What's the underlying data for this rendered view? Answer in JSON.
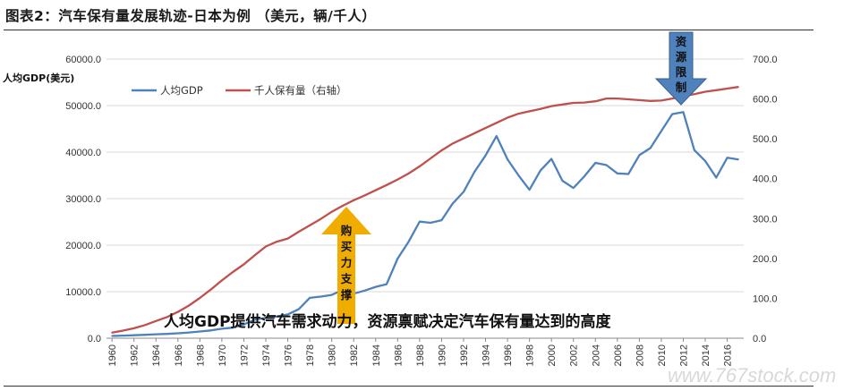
{
  "title": "图表2：汽车保有量发展轨迹-日本为例 （美元，辆/千人）",
  "watermark": "www.767stock.com",
  "chart_data": {
    "type": "line",
    "subtitle": "人均GDP提供汽车需求动力，资源禀赋决定汽车保有量达到的高度",
    "ylabel_left": "人均GDP(美元)",
    "ylim_left": [
      0,
      60000
    ],
    "ylim_right": [
      0,
      700
    ],
    "yticks_left": [
      "0.0",
      "10000.0",
      "20000.0",
      "30000.0",
      "40000.0",
      "50000.0",
      "60000.0"
    ],
    "yticks_right": [
      "0.0",
      "100.0",
      "200.0",
      "300.0",
      "400.0",
      "500.0",
      "600.0",
      "700.0"
    ],
    "x": [
      1960,
      1961,
      1962,
      1963,
      1964,
      1965,
      1966,
      1967,
      1968,
      1969,
      1970,
      1971,
      1972,
      1973,
      1974,
      1975,
      1976,
      1977,
      1978,
      1979,
      1980,
      1981,
      1982,
      1983,
      1984,
      1985,
      1986,
      1987,
      1988,
      1989,
      1990,
      1991,
      1992,
      1993,
      1994,
      1995,
      1996,
      1997,
      1998,
      1999,
      2000,
      2001,
      2002,
      2003,
      2004,
      2005,
      2006,
      2007,
      2008,
      2009,
      2010,
      2011,
      2012,
      2013,
      2014,
      2015,
      2016,
      2017
    ],
    "xticks": [
      "1960",
      "1962",
      "1964",
      "1966",
      "1968",
      "1970",
      "1972",
      "1974",
      "1976",
      "1978",
      "1980",
      "1982",
      "1984",
      "1986",
      "1988",
      "1990",
      "1992",
      "1994",
      "1996",
      "1998",
      "2000",
      "2002",
      "2004",
      "2006",
      "2008",
      "2010",
      "2012",
      "2014",
      "2016"
    ],
    "legend_position": "top-left",
    "series": [
      {
        "name": "人均GDP",
        "axis": "left",
        "color": "#4f81bd",
        "values": [
          480,
          560,
          640,
          730,
          840,
          920,
          1060,
          1230,
          1450,
          1670,
          2040,
          2270,
          2970,
          3990,
          4360,
          4660,
          5110,
          6230,
          8670,
          8950,
          9310,
          10360,
          9580,
          10230,
          11040,
          11610,
          17110,
          20750,
          25050,
          24810,
          25360,
          28920,
          31460,
          35770,
          39270,
          43440,
          38440,
          35020,
          31900,
          36040,
          38530,
          33850,
          32290,
          34810,
          37690,
          37220,
          35430,
          35280,
          39340,
          40860,
          44510,
          48170,
          48600,
          40450,
          38100,
          34520,
          38790,
          38430
        ]
      },
      {
        "name": "千人保有量（右轴）",
        "axis": "right",
        "color": "#c0504d",
        "values": [
          14,
          19,
          25,
          33,
          43,
          53,
          66,
          82,
          101,
          122,
          145,
          166,
          185,
          208,
          230,
          242,
          250,
          267,
          283,
          299,
          317,
          332,
          346,
          358,
          371,
          384,
          398,
          413,
          431,
          451,
          471,
          488,
          501,
          514,
          527,
          540,
          553,
          563,
          569,
          575,
          582,
          586,
          590,
          591,
          594,
          601,
          601,
          599,
          597,
          595,
          596,
          601,
          607,
          612,
          618,
          622,
          626,
          630
        ]
      }
    ],
    "annotations": [
      {
        "text": "购买力支撑",
        "arrow": "up",
        "color": "#f0ad00"
      },
      {
        "text": "资源限制",
        "arrow": "down",
        "color": "#4f81bd"
      }
    ]
  }
}
